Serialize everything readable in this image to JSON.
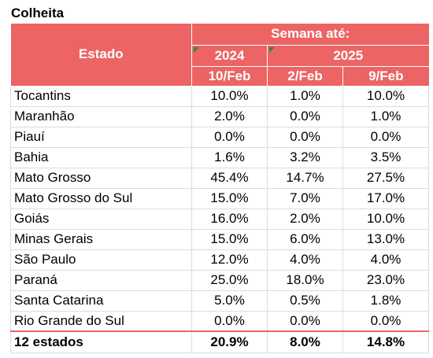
{
  "title": "Colheita",
  "header": {
    "estado": "Estado",
    "semana": "Semana até:",
    "year_2024": "2024",
    "year_2025": "2025",
    "dates": [
      "10/Feb",
      "2/Feb",
      "9/Feb"
    ]
  },
  "rows": [
    {
      "estado": "Tocantins",
      "v": [
        "10.0%",
        "1.0%",
        "10.0%"
      ]
    },
    {
      "estado": "Maranhão",
      "v": [
        "2.0%",
        "0.0%",
        "1.0%"
      ]
    },
    {
      "estado": "Piauí",
      "v": [
        "0.0%",
        "0.0%",
        "0.0%"
      ]
    },
    {
      "estado": "Bahia",
      "v": [
        "1.6%",
        "3.2%",
        "3.5%"
      ]
    },
    {
      "estado": "Mato Grosso",
      "v": [
        "45.4%",
        "14.7%",
        "27.5%"
      ]
    },
    {
      "estado": "Mato Grosso do Sul",
      "v": [
        "15.0%",
        "7.0%",
        "17.0%"
      ]
    },
    {
      "estado": "Goiás",
      "v": [
        "16.0%",
        "2.0%",
        "10.0%"
      ]
    },
    {
      "estado": "Minas Gerais",
      "v": [
        "15.0%",
        "6.0%",
        "13.0%"
      ]
    },
    {
      "estado": "São Paulo",
      "v": [
        "12.0%",
        "4.0%",
        "4.0%"
      ]
    },
    {
      "estado": "Paraná",
      "v": [
        "25.0%",
        "18.0%",
        "23.0%"
      ]
    },
    {
      "estado": "Santa Catarina",
      "v": [
        "5.0%",
        "0.5%",
        "1.8%"
      ]
    },
    {
      "estado": "Rio Grande do Sul",
      "v": [
        "0.0%",
        "0.0%",
        "0.0%"
      ]
    }
  ],
  "total": {
    "estado": "12 estados",
    "v": [
      "20.9%",
      "8.0%",
      "14.8%"
    ]
  },
  "colors": {
    "header_bg": "#ec6464",
    "flag": "#2e8b3d"
  }
}
